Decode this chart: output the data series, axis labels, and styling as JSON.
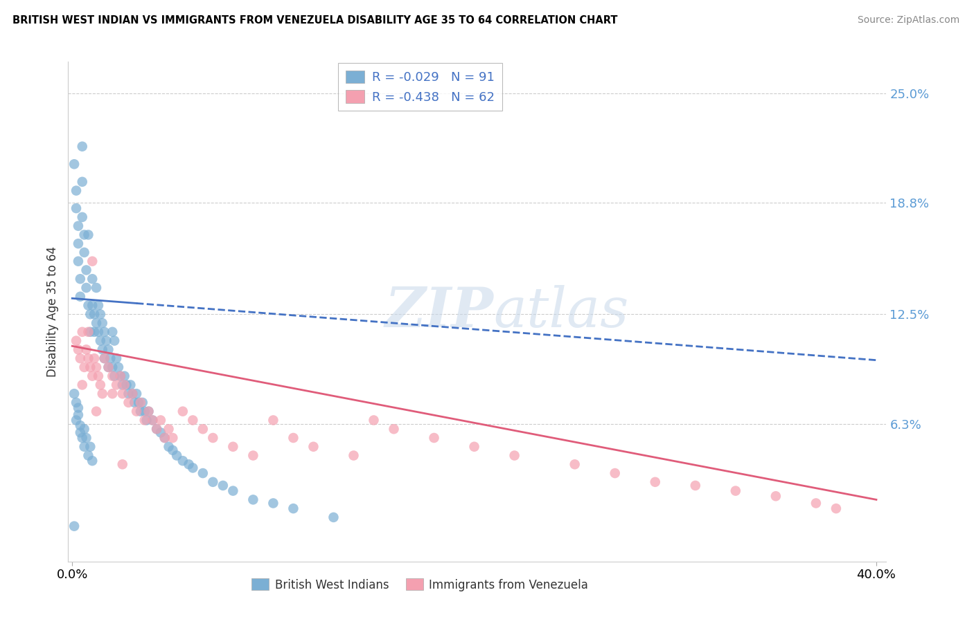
{
  "title": "BRITISH WEST INDIAN VS IMMIGRANTS FROM VENEZUELA DISABILITY AGE 35 TO 64 CORRELATION CHART",
  "source": "Source: ZipAtlas.com",
  "ylabel": "Disability Age 35 to 64",
  "xlim": [
    -0.002,
    0.405
  ],
  "ylim": [
    -0.015,
    0.268
  ],
  "blue_R": -0.029,
  "blue_N": 91,
  "pink_R": -0.438,
  "pink_N": 62,
  "blue_color": "#7bafd4",
  "pink_color": "#f4a0b0",
  "blue_line_color": "#4472c4",
  "pink_line_color": "#e05c7a",
  "legend_label_blue": "British West Indians",
  "legend_label_pink": "Immigrants from Venezuela",
  "watermark_zip": "ZIP",
  "watermark_atlas": "atlas",
  "ytick_vals": [
    0.0,
    0.063,
    0.125,
    0.188,
    0.25
  ],
  "ytick_labels": [
    "",
    "6.3%",
    "12.5%",
    "18.8%",
    "25.0%"
  ],
  "blue_line_x0": 0.0,
  "blue_line_y0": 0.134,
  "blue_line_x1": 0.4,
  "blue_line_y1": 0.099,
  "pink_line_x0": 0.0,
  "pink_line_y0": 0.107,
  "pink_line_x1": 0.4,
  "pink_line_y1": 0.02,
  "blue_scatter_x": [
    0.001,
    0.002,
    0.002,
    0.003,
    0.003,
    0.003,
    0.004,
    0.004,
    0.005,
    0.005,
    0.005,
    0.006,
    0.006,
    0.007,
    0.007,
    0.008,
    0.008,
    0.009,
    0.009,
    0.01,
    0.01,
    0.011,
    0.011,
    0.012,
    0.012,
    0.013,
    0.013,
    0.014,
    0.014,
    0.015,
    0.015,
    0.016,
    0.016,
    0.017,
    0.018,
    0.018,
    0.019,
    0.02,
    0.02,
    0.021,
    0.021,
    0.022,
    0.023,
    0.024,
    0.025,
    0.026,
    0.027,
    0.028,
    0.029,
    0.03,
    0.031,
    0.032,
    0.033,
    0.034,
    0.035,
    0.036,
    0.037,
    0.038,
    0.04,
    0.042,
    0.044,
    0.046,
    0.048,
    0.05,
    0.052,
    0.055,
    0.058,
    0.06,
    0.065,
    0.07,
    0.075,
    0.08,
    0.09,
    0.1,
    0.11,
    0.13,
    0.001,
    0.002,
    0.002,
    0.003,
    0.003,
    0.004,
    0.004,
    0.005,
    0.006,
    0.006,
    0.007,
    0.008,
    0.009,
    0.01,
    0.001
  ],
  "blue_scatter_y": [
    0.21,
    0.195,
    0.185,
    0.175,
    0.165,
    0.155,
    0.145,
    0.135,
    0.22,
    0.2,
    0.18,
    0.17,
    0.16,
    0.15,
    0.14,
    0.13,
    0.17,
    0.125,
    0.115,
    0.145,
    0.13,
    0.125,
    0.115,
    0.14,
    0.12,
    0.13,
    0.115,
    0.125,
    0.11,
    0.12,
    0.105,
    0.115,
    0.1,
    0.11,
    0.105,
    0.095,
    0.1,
    0.115,
    0.095,
    0.11,
    0.09,
    0.1,
    0.095,
    0.09,
    0.085,
    0.09,
    0.085,
    0.08,
    0.085,
    0.08,
    0.075,
    0.08,
    0.075,
    0.07,
    0.075,
    0.07,
    0.065,
    0.07,
    0.065,
    0.06,
    0.058,
    0.055,
    0.05,
    0.048,
    0.045,
    0.042,
    0.04,
    0.038,
    0.035,
    0.03,
    0.028,
    0.025,
    0.02,
    0.018,
    0.015,
    0.01,
    0.08,
    0.075,
    0.065,
    0.072,
    0.068,
    0.062,
    0.058,
    0.055,
    0.06,
    0.05,
    0.055,
    0.045,
    0.05,
    0.042,
    0.005
  ],
  "pink_scatter_x": [
    0.002,
    0.003,
    0.004,
    0.005,
    0.006,
    0.007,
    0.008,
    0.009,
    0.01,
    0.01,
    0.011,
    0.012,
    0.013,
    0.014,
    0.015,
    0.016,
    0.018,
    0.02,
    0.02,
    0.022,
    0.024,
    0.025,
    0.026,
    0.028,
    0.03,
    0.032,
    0.034,
    0.036,
    0.038,
    0.04,
    0.042,
    0.044,
    0.046,
    0.048,
    0.05,
    0.055,
    0.06,
    0.065,
    0.07,
    0.08,
    0.09,
    0.1,
    0.11,
    0.12,
    0.14,
    0.15,
    0.16,
    0.18,
    0.2,
    0.22,
    0.25,
    0.27,
    0.29,
    0.31,
    0.33,
    0.35,
    0.37,
    0.38,
    0.005,
    0.008,
    0.012,
    0.025
  ],
  "pink_scatter_y": [
    0.11,
    0.105,
    0.1,
    0.115,
    0.095,
    0.105,
    0.1,
    0.095,
    0.09,
    0.155,
    0.1,
    0.095,
    0.09,
    0.085,
    0.08,
    0.1,
    0.095,
    0.09,
    0.08,
    0.085,
    0.09,
    0.08,
    0.085,
    0.075,
    0.08,
    0.07,
    0.075,
    0.065,
    0.07,
    0.065,
    0.06,
    0.065,
    0.055,
    0.06,
    0.055,
    0.07,
    0.065,
    0.06,
    0.055,
    0.05,
    0.045,
    0.065,
    0.055,
    0.05,
    0.045,
    0.065,
    0.06,
    0.055,
    0.05,
    0.045,
    0.04,
    0.035,
    0.03,
    0.028,
    0.025,
    0.022,
    0.018,
    0.015,
    0.085,
    0.115,
    0.07,
    0.04
  ]
}
